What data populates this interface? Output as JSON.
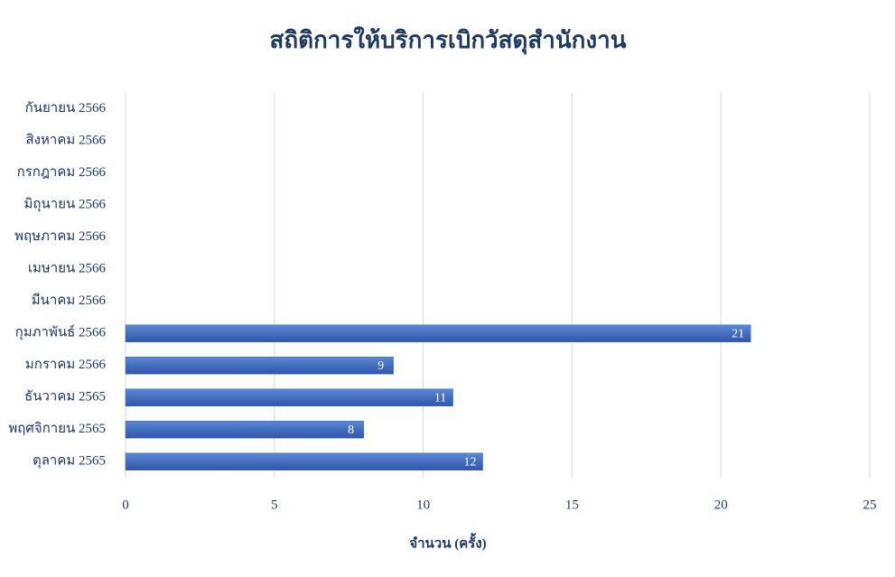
{
  "chart_data": {
    "type": "bar",
    "orientation": "horizontal",
    "title": "สถิติการให้บริการเบิกวัสดุสำนักงาน",
    "x_label": "จำนวน (ครั้ง)",
    "categories": [
      "กันยายน 2566",
      "สิงหาคม 2566",
      "กรกฎาคม 2566",
      "มิถุนายน 2566",
      "พฤษภาคม 2566",
      "เมษายน 2566",
      "มีนาคม 2566",
      "กุมภาพันธ์ 2566",
      "มกราคม 2566",
      "ธันวาคม 2565",
      "พฤศจิกายน 2565",
      "ตุลาคม 2565"
    ],
    "values": [
      null,
      null,
      null,
      null,
      null,
      null,
      null,
      21,
      9,
      11,
      8,
      12
    ],
    "color": "#3f6cc4",
    "xlim": [
      0,
      25
    ],
    "xticks": [
      0,
      5,
      10,
      15,
      20,
      25
    ],
    "grid": true
  }
}
